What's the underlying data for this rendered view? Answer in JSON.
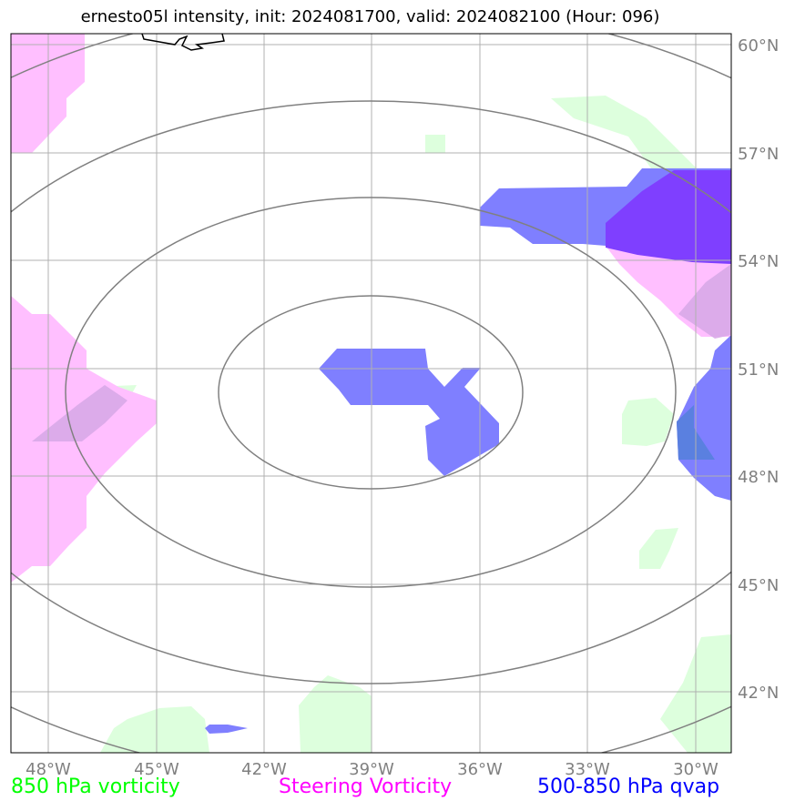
{
  "title": "ernesto05l intensity, init: 2024081700, valid: 2024082100 (Hour: 096)",
  "lon_ticks": [
    "48°W",
    "45°W",
    "42°W",
    "39°W",
    "36°W",
    "33°W",
    "30°W"
  ],
  "lat_ticks": [
    "60°N",
    "57°N",
    "54°N",
    "51°N",
    "48°N",
    "45°N",
    "42°N"
  ],
  "legend": [
    {
      "label": "850 hPa vorticity",
      "color": "#00ff00"
    },
    {
      "label": "Steering Vorticity",
      "color": "#ff00ff"
    },
    {
      "label": "500-850 hPa qvap",
      "color": "#0000ff"
    }
  ],
  "colors": {
    "vorticity_850": "#ddffdd",
    "steering_vorticity": "#ffbfff",
    "qvap": "#7f7fff",
    "qvap_steering_overlap": "#7f3fff",
    "range_rings": "#808080",
    "grid": "#b0b0b0"
  }
}
